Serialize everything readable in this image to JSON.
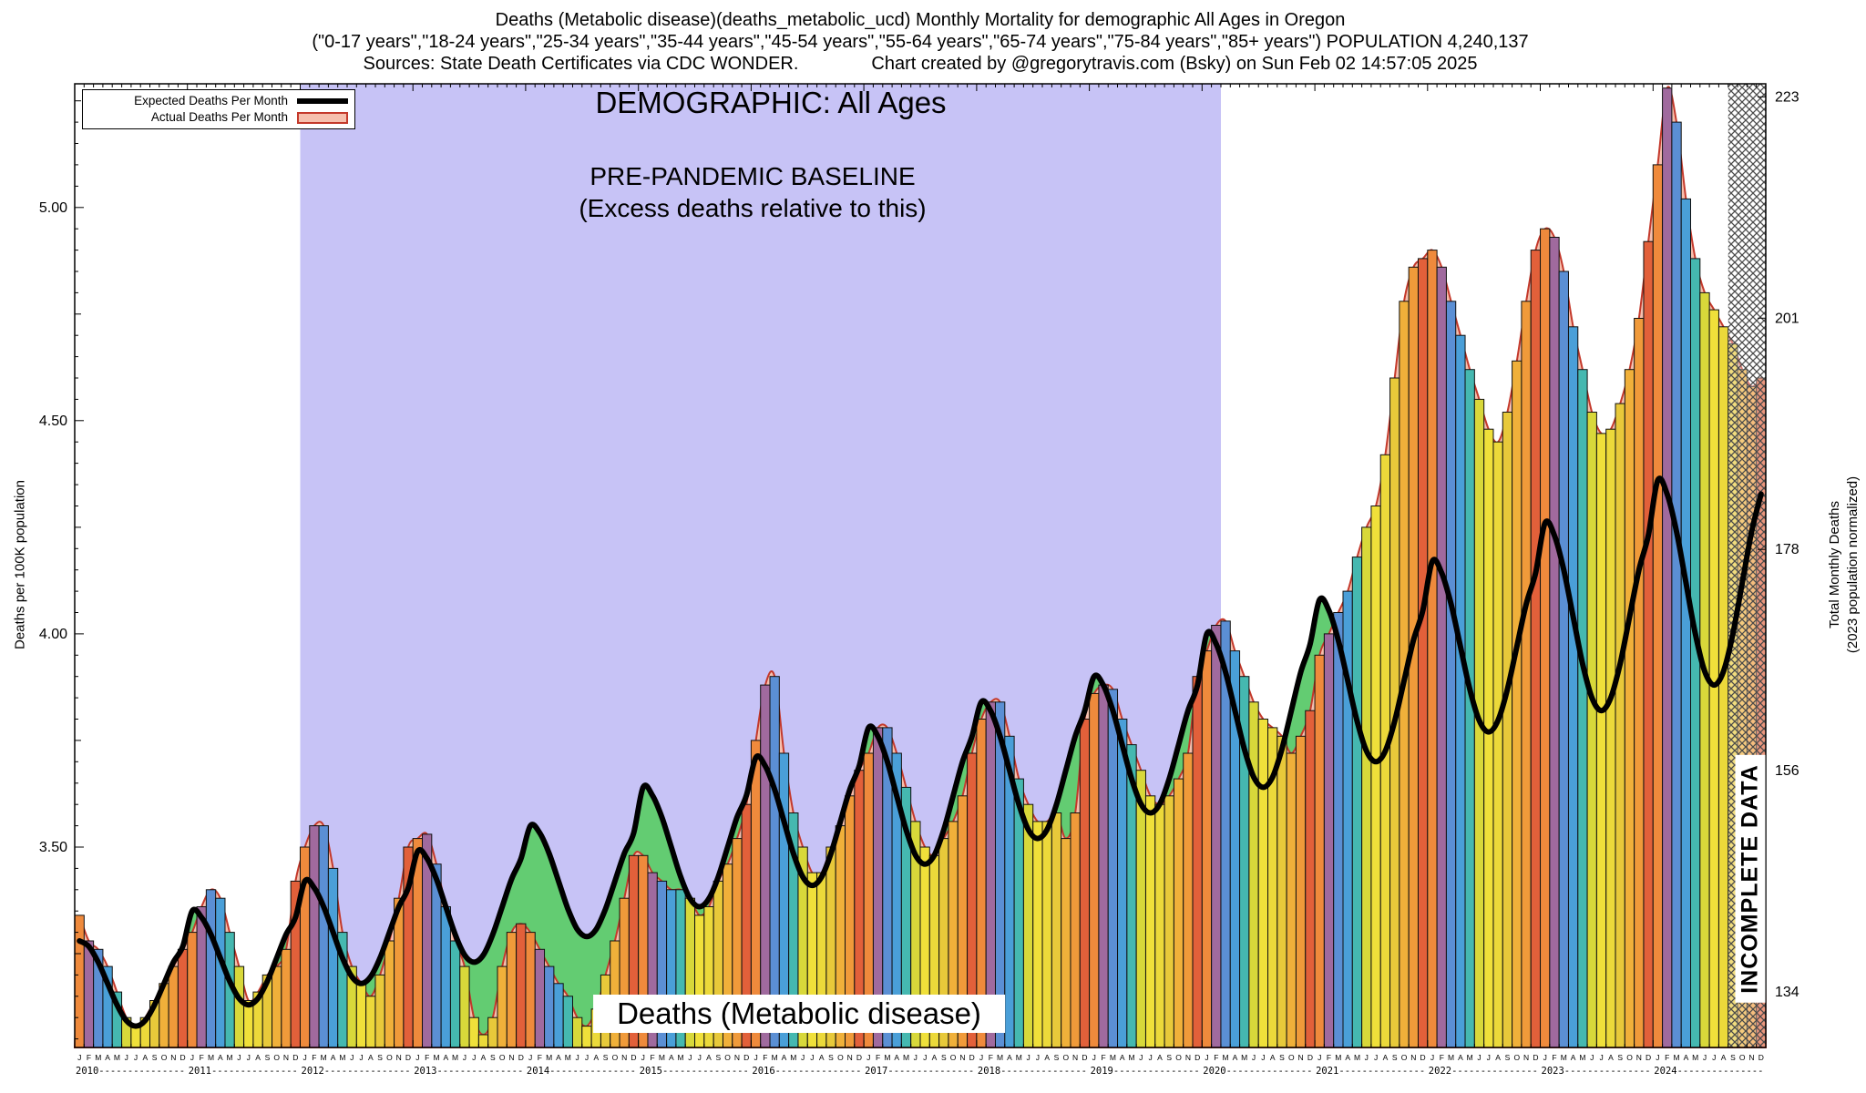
{
  "title": {
    "line1": "Deaths (Metabolic disease)(deaths_metabolic_ucd) Monthly Mortality for demographic All Ages in Oregon",
    "line2": "(\"0-17 years\",\"18-24 years\",\"25-34 years\",\"35-44 years\",\"45-54 years\",\"55-64 years\",\"65-74 years\",\"75-84 years\",\"85+ years\") POPULATION 4,240,137",
    "line3_left": "Sources: State Death Certificates via CDC WONDER.",
    "line3_right": "Chart created by @gregorytravis.com (Bsky) on Sun Feb 02 14:57:05 2025"
  },
  "legend": {
    "expected_label": "Expected Deaths Per Month",
    "actual_label": "Actual Deaths Per Month"
  },
  "annotations": {
    "demographic": "DEMOGRAPHIC: All Ages",
    "baseline_line1": "PRE-PANDEMIC BASELINE",
    "baseline_line2": "(Excess deaths relative to this)",
    "chart_label": "Deaths (Metabolic disease)",
    "incomplete": "INCOMPLETE DATA"
  },
  "chart_data": {
    "type": "bar",
    "title": "Deaths (Metabolic disease)",
    "start_year": 2010,
    "end_year": 2024,
    "month_letters": [
      "J",
      "F",
      "M",
      "A",
      "M",
      "J",
      "J",
      "A",
      "S",
      "O",
      "N",
      "D"
    ],
    "ylabel": "Deaths per 100K population",
    "y2label_line1": "Total Monthly Deaths",
    "y2label_line2": "(2023 population normalized)",
    "y_domain": [
      3.03,
      5.29
    ],
    "left_ticks": [
      3.5,
      4.0,
      4.5,
      5.0
    ],
    "right_ticks": [
      134,
      156,
      178,
      201,
      223
    ],
    "population": 4240137,
    "baseline_start_index": 24,
    "baseline_end_index": 122,
    "incomplete_start_index": 176,
    "series": [
      {
        "name": "Actual Deaths Per Month",
        "values": [
          3.34,
          3.28,
          3.26,
          3.22,
          3.16,
          3.1,
          3.08,
          3.1,
          3.14,
          3.18,
          3.22,
          3.26,
          3.3,
          3.36,
          3.4,
          3.38,
          3.3,
          3.22,
          3.14,
          3.16,
          3.2,
          3.22,
          3.26,
          3.42,
          3.5,
          3.55,
          3.55,
          3.45,
          3.3,
          3.22,
          3.18,
          3.15,
          3.2,
          3.28,
          3.38,
          3.5,
          3.52,
          3.53,
          3.46,
          3.36,
          3.28,
          3.22,
          3.1,
          3.06,
          3.1,
          3.22,
          3.3,
          3.32,
          3.3,
          3.26,
          3.22,
          3.18,
          3.15,
          3.1,
          3.08,
          3.12,
          3.2,
          3.28,
          3.38,
          3.48,
          3.48,
          3.44,
          3.42,
          3.4,
          3.4,
          3.38,
          3.34,
          3.36,
          3.42,
          3.46,
          3.52,
          3.6,
          3.75,
          3.88,
          3.9,
          3.72,
          3.58,
          3.5,
          3.44,
          3.44,
          3.5,
          3.55,
          3.62,
          3.68,
          3.72,
          3.78,
          3.78,
          3.72,
          3.64,
          3.56,
          3.5,
          3.48,
          3.52,
          3.56,
          3.62,
          3.72,
          3.8,
          3.84,
          3.84,
          3.76,
          3.66,
          3.6,
          3.56,
          3.56,
          3.58,
          3.52,
          3.58,
          3.8,
          3.86,
          3.88,
          3.87,
          3.8,
          3.74,
          3.68,
          3.62,
          3.6,
          3.62,
          3.66,
          3.72,
          3.9,
          3.96,
          4.02,
          4.03,
          3.96,
          3.9,
          3.84,
          3.8,
          3.78,
          3.76,
          3.72,
          3.76,
          3.82,
          3.95,
          4.0,
          4.05,
          4.1,
          4.18,
          4.25,
          4.3,
          4.42,
          4.6,
          4.78,
          4.86,
          4.88,
          4.9,
          4.86,
          4.78,
          4.7,
          4.62,
          4.55,
          4.48,
          4.45,
          4.52,
          4.64,
          4.78,
          4.9,
          4.95,
          4.93,
          4.85,
          4.72,
          4.62,
          4.52,
          4.47,
          4.48,
          4.54,
          4.62,
          4.74,
          4.92,
          5.1,
          5.28,
          5.2,
          5.02,
          4.88,
          4.8,
          4.76,
          4.72,
          4.68,
          4.62,
          4.58,
          4.6
        ]
      },
      {
        "name": "Expected Deaths Per Month",
        "values": [
          3.28,
          3.267,
          3.23,
          3.18,
          3.13,
          3.093,
          3.08,
          3.093,
          3.13,
          3.18,
          3.23,
          3.267,
          3.35,
          3.335,
          3.295,
          3.24,
          3.185,
          3.145,
          3.13,
          3.145,
          3.185,
          3.24,
          3.295,
          3.335,
          3.42,
          3.404,
          3.36,
          3.3,
          3.24,
          3.196,
          3.18,
          3.196,
          3.24,
          3.3,
          3.36,
          3.404,
          3.49,
          3.473,
          3.425,
          3.36,
          3.295,
          3.247,
          3.23,
          3.247,
          3.295,
          3.36,
          3.425,
          3.473,
          3.55,
          3.533,
          3.485,
          3.42,
          3.355,
          3.307,
          3.29,
          3.307,
          3.355,
          3.42,
          3.485,
          3.533,
          3.64,
          3.621,
          3.57,
          3.5,
          3.43,
          3.379,
          3.36,
          3.379,
          3.43,
          3.5,
          3.57,
          3.621,
          3.71,
          3.69,
          3.635,
          3.56,
          3.485,
          3.43,
          3.41,
          3.43,
          3.485,
          3.56,
          3.635,
          3.69,
          3.78,
          3.759,
          3.7,
          3.62,
          3.54,
          3.481,
          3.46,
          3.481,
          3.54,
          3.62,
          3.7,
          3.759,
          3.84,
          3.819,
          3.76,
          3.68,
          3.6,
          3.541,
          3.52,
          3.541,
          3.6,
          3.68,
          3.76,
          3.819,
          3.9,
          3.879,
          3.82,
          3.74,
          3.66,
          3.601,
          3.58,
          3.601,
          3.66,
          3.74,
          3.82,
          3.879,
          4.0,
          3.976,
          3.91,
          3.82,
          3.73,
          3.664,
          3.64,
          3.664,
          3.73,
          3.82,
          3.91,
          3.976,
          4.08,
          4.055,
          3.985,
          3.89,
          3.795,
          3.725,
          3.7,
          3.725,
          3.795,
          3.89,
          3.985,
          4.055,
          4.17,
          4.143,
          4.07,
          3.97,
          3.87,
          3.797,
          3.77,
          3.797,
          3.87,
          3.97,
          4.07,
          4.143,
          4.26,
          4.231,
          4.15,
          4.04,
          3.93,
          3.85,
          3.82,
          3.85,
          3.93,
          4.04,
          4.15,
          4.231,
          4.36,
          4.328,
          4.24,
          4.12,
          4.0,
          3.912,
          3.88,
          3.912,
          4.0,
          4.12,
          4.24,
          4.328
        ]
      }
    ],
    "month_colors": [
      "#ef8a3c",
      "#a06a9e",
      "#5b8fd4",
      "#4a9fd8",
      "#45b8b0",
      "#d8d83a",
      "#f0e03a",
      "#ecd93a",
      "#e8c93a",
      "#f0b03a",
      "#f09a3a",
      "#e2603a"
    ],
    "colors": {
      "baseline_fill": "#c7c3f6",
      "actual_fill": "#f6c0ae",
      "actual_stroke": "#c4392b",
      "deficit_green": "#63cc72",
      "expected_line": "#000000",
      "hatch": "#4a4a4a"
    }
  }
}
